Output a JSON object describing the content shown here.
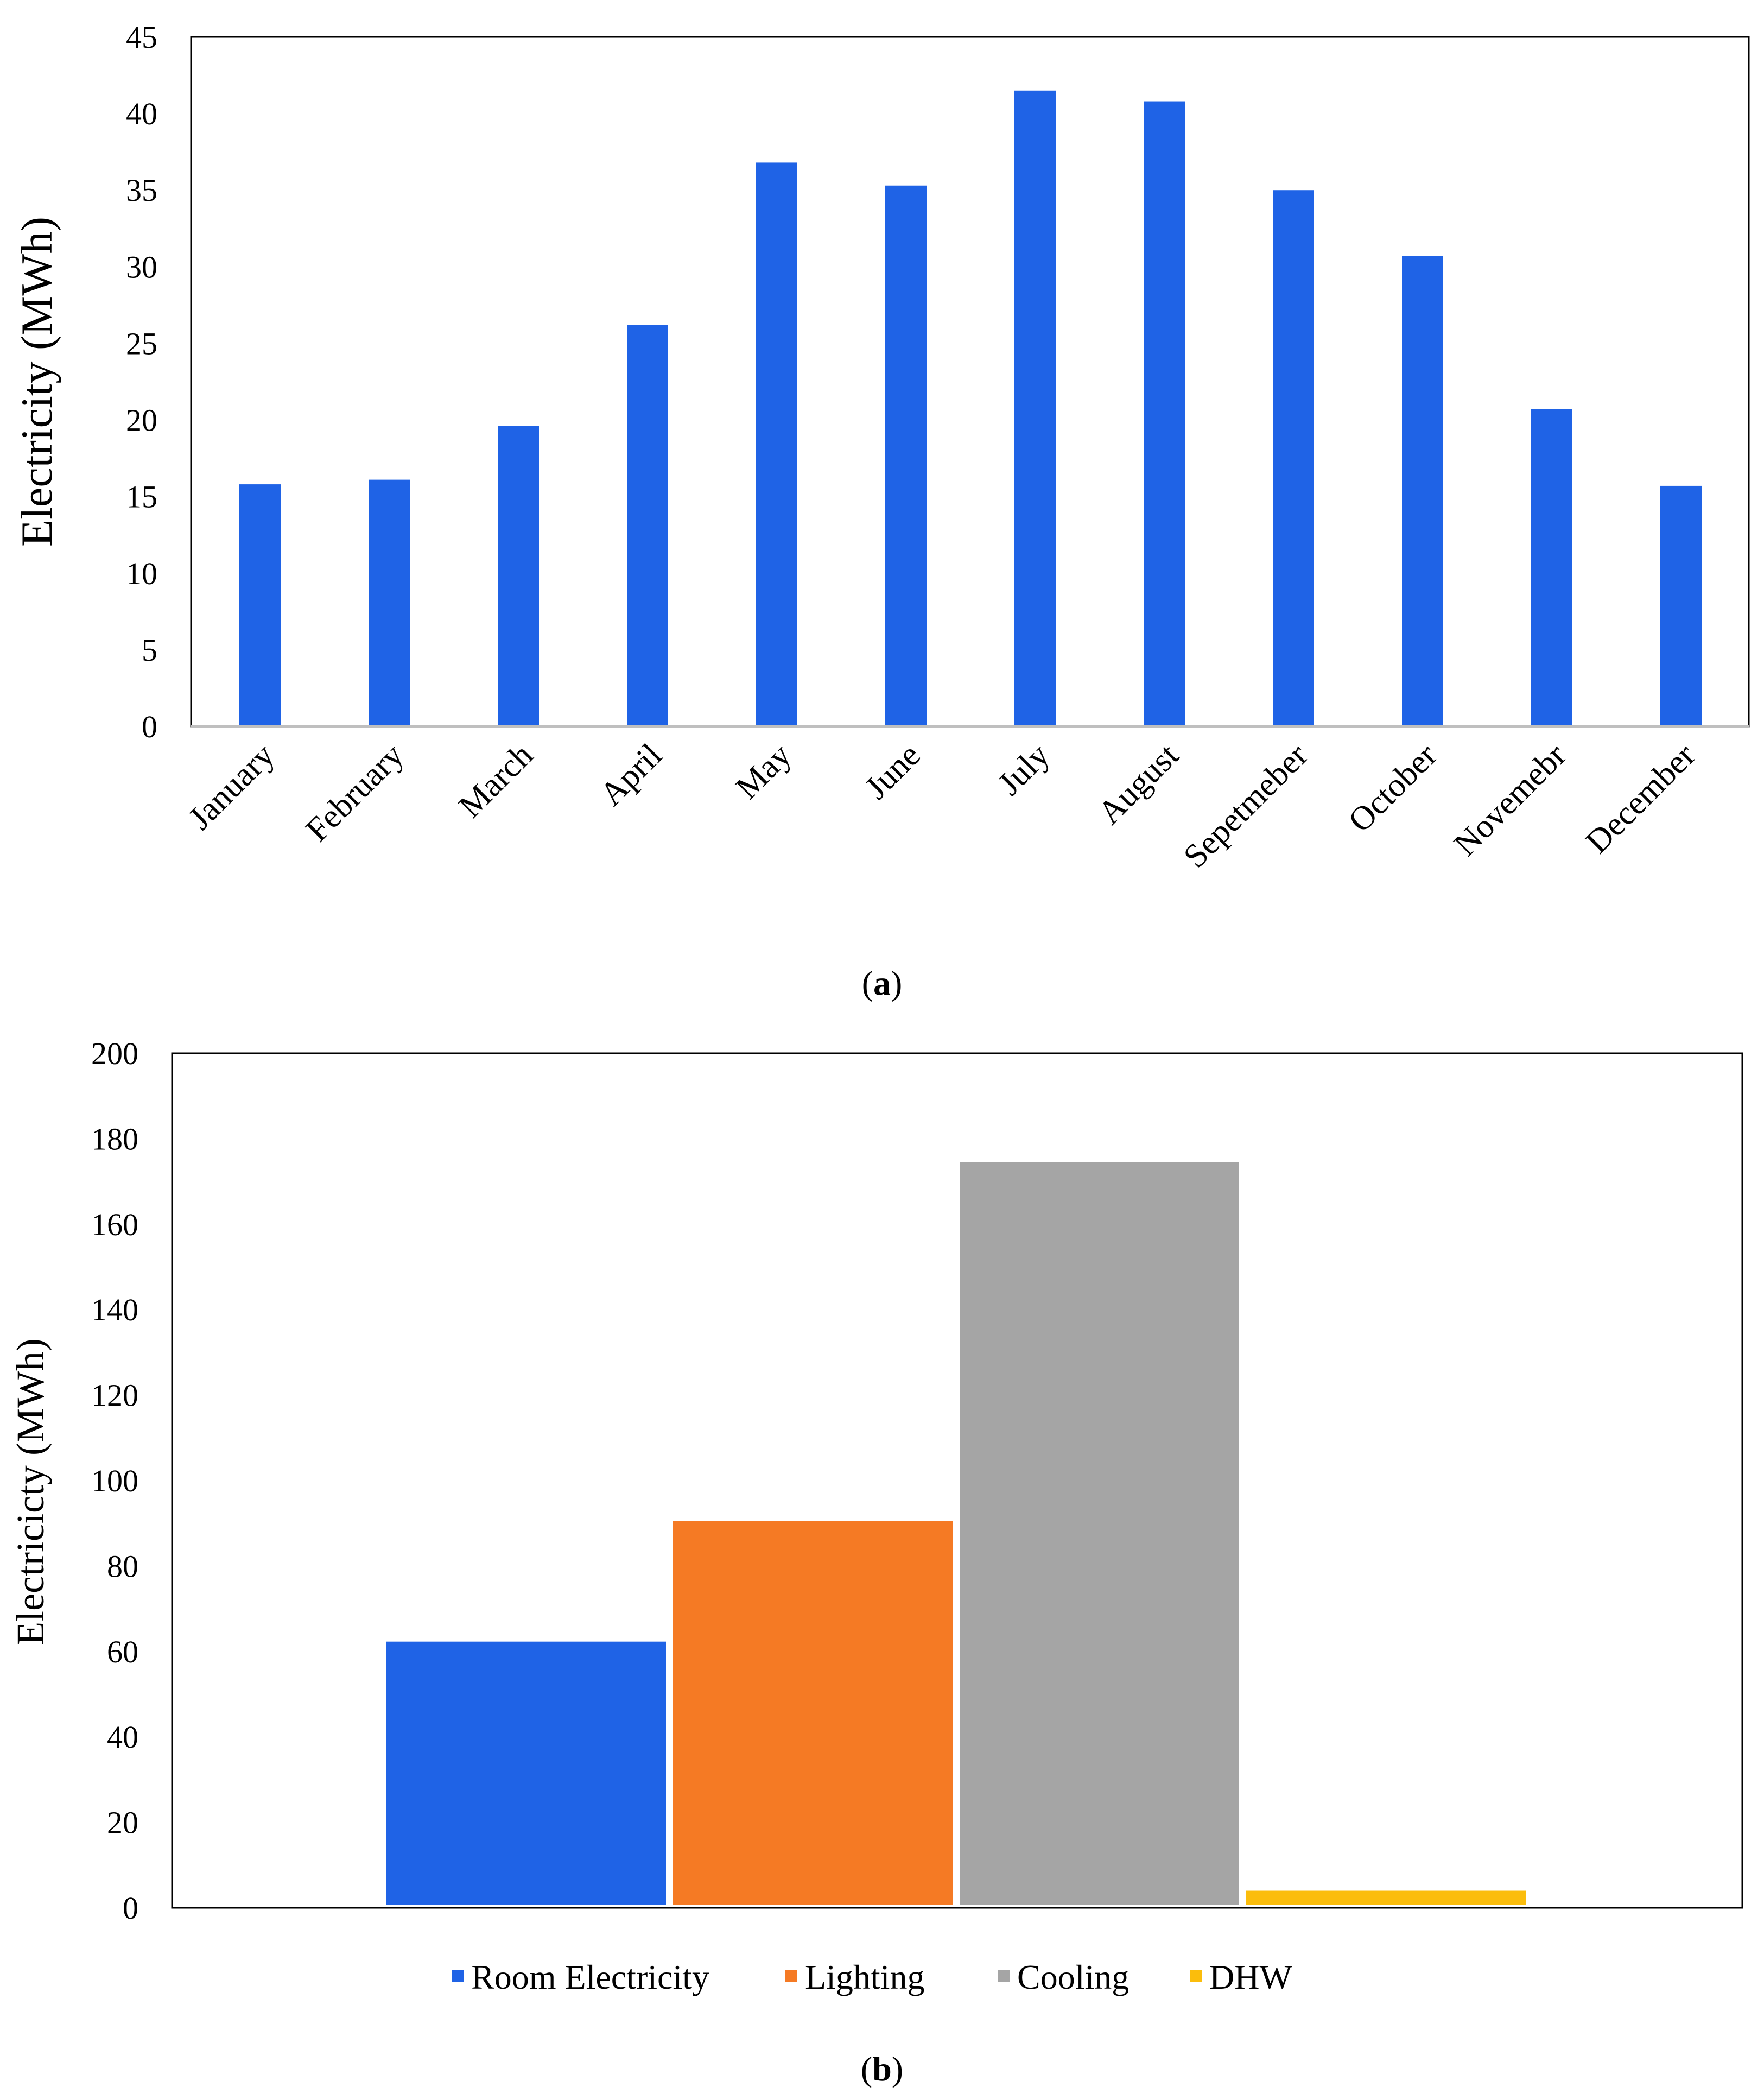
{
  "colors": {
    "bar_blue": "#1f63e6",
    "lighting": "#f57a24",
    "cooling": "#a5a5a5",
    "dhw": "#fbbd0c",
    "frame": "#000000",
    "baseline": "#bfbfbf"
  },
  "chart_data": [
    {
      "type": "bar",
      "panel": "a",
      "title": "",
      "xlabel": "",
      "ylabel": "Electricity (MWh)",
      "ylim": [
        0,
        45
      ],
      "yticks": [
        0,
        5,
        10,
        15,
        20,
        25,
        30,
        35,
        40,
        45
      ],
      "categories": [
        "January",
        "February",
        "March",
        "April",
        "May",
        "June",
        "July",
        "August",
        "Sepetmeber",
        "October",
        "Novemebr",
        "December"
      ],
      "values": [
        15.8,
        16.1,
        19.6,
        26.2,
        36.8,
        35.3,
        41.5,
        40.8,
        35.0,
        30.7,
        20.7,
        15.7
      ],
      "caption_letter": "a",
      "grid": false,
      "legend": "none"
    },
    {
      "type": "bar",
      "panel": "b",
      "title": "",
      "xlabel": "",
      "ylabel": "Electricicty (MWh)",
      "ylim": [
        0,
        200
      ],
      "yticks": [
        0,
        20,
        40,
        60,
        80,
        100,
        120,
        140,
        160,
        180,
        200
      ],
      "series": [
        {
          "name": "Room Electricity",
          "values": [
            62.3
          ],
          "color": "#1f63e6"
        },
        {
          "name": "Lighting",
          "values": [
            90.5
          ],
          "color": "#f57a24"
        },
        {
          "name": "Cooling",
          "values": [
            174.5
          ],
          "color": "#a5a5a5"
        },
        {
          "name": "DHW",
          "values": [
            4.0
          ],
          "color": "#fbbd0c"
        }
      ],
      "caption_letter": "b",
      "grid": false,
      "legend": "bottom-center"
    }
  ]
}
